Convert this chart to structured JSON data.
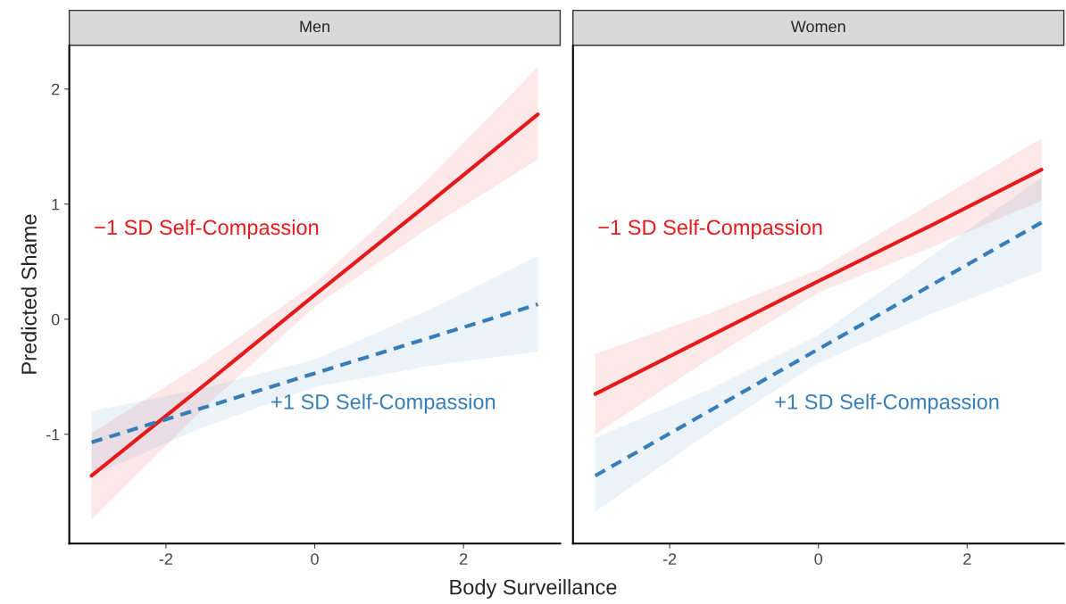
{
  "chart_data": [
    {
      "type": "line",
      "title": "Men",
      "xlabel": "Body Surveillance",
      "ylabel": "Predicted Shame",
      "xlim": [
        -3.3,
        3.3
      ],
      "ylim": [
        -1.95,
        2.38
      ],
      "xticks": [
        -2,
        0,
        2
      ],
      "yticks": [
        -1,
        0,
        1,
        2
      ],
      "grid": false,
      "legend": false,
      "x": [
        -3,
        -1.5,
        0,
        1.5,
        3
      ],
      "series": [
        {
          "name": "−1 SD Self-Compassion",
          "color": "#e41a1c",
          "line_style": "solid",
          "values": [
            -1.36,
            -0.58,
            0.21,
            0.99,
            1.78
          ],
          "lower": [
            -1.74,
            -0.78,
            0.11,
            0.78,
            1.39
          ],
          "upper": [
            -0.99,
            -0.38,
            0.31,
            1.2,
            2.19
          ]
        },
        {
          "name": "+1 SD Self-Compassion",
          "color": "#377eb8",
          "line_style": "dashed",
          "values": [
            -1.07,
            -0.77,
            -0.47,
            -0.17,
            0.13
          ],
          "lower": [
            -1.36,
            -0.94,
            -0.59,
            -0.41,
            -0.28
          ],
          "upper": [
            -0.8,
            -0.6,
            -0.35,
            0.07,
            0.55
          ]
        }
      ]
    },
    {
      "type": "line",
      "title": "Women",
      "xlim": [
        -3.3,
        3.3
      ],
      "ylim": [
        -1.95,
        2.38
      ],
      "xticks": [
        -2,
        0,
        2
      ],
      "yticks": [
        -1,
        0,
        1,
        2
      ],
      "tick_labels": "x",
      "grid": false,
      "legend": false,
      "x": [
        -3,
        -1.5,
        0,
        1.5,
        3
      ],
      "series": [
        {
          "name": "−1 SD Self-Compassion",
          "color": "#e41a1c",
          "line_style": "solid",
          "values": [
            -0.65,
            -0.16,
            0.33,
            0.81,
            1.3
          ],
          "lower": [
            -1.0,
            -0.36,
            0.23,
            0.62,
            1.03
          ],
          "upper": [
            -0.3,
            0.04,
            0.43,
            1.0,
            1.57
          ]
        },
        {
          "name": "+1 SD Self-Compassion",
          "color": "#377eb8",
          "line_style": "dashed",
          "values": [
            -1.36,
            -0.81,
            -0.26,
            0.29,
            0.84
          ],
          "lower": [
            -1.67,
            -1.0,
            -0.38,
            0.04,
            0.42
          ],
          "upper": [
            -1.03,
            -0.62,
            -0.14,
            0.54,
            1.23
          ]
        }
      ]
    }
  ]
}
